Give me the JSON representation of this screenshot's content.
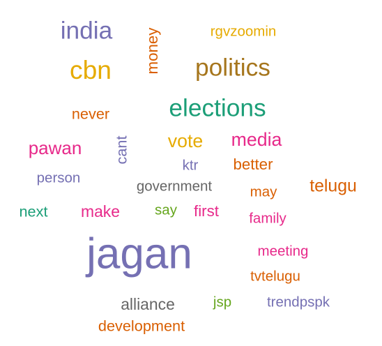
{
  "chart_data": {
    "type": "wordcloud",
    "title": "",
    "words": [
      {
        "text": "jagan",
        "weight": 100,
        "color": "#7570b3"
      },
      {
        "text": "cbn",
        "weight": 60,
        "color": "#e6ab02"
      },
      {
        "text": "india",
        "weight": 57,
        "color": "#7570b3"
      },
      {
        "text": "elections",
        "weight": 57,
        "color": "#1b9e77"
      },
      {
        "text": "politics",
        "weight": 57,
        "color": "#a6761d"
      },
      {
        "text": "money",
        "weight": 36,
        "color": "#d95f02"
      },
      {
        "text": "rgvzoomin",
        "weight": 33,
        "color": "#e6ab02"
      },
      {
        "text": "never",
        "weight": 35,
        "color": "#d95f02"
      },
      {
        "text": "pawan",
        "weight": 42,
        "color": "#e7298a"
      },
      {
        "text": "cant",
        "weight": 35,
        "color": "#7570b3"
      },
      {
        "text": "vote",
        "weight": 43,
        "color": "#e6ab02"
      },
      {
        "text": "media",
        "weight": 43,
        "color": "#e7298a"
      },
      {
        "text": "ktr",
        "weight": 33,
        "color": "#7570b3"
      },
      {
        "text": "better",
        "weight": 36,
        "color": "#d95f02"
      },
      {
        "text": "person",
        "weight": 33,
        "color": "#7570b3"
      },
      {
        "text": "government",
        "weight": 33,
        "color": "#666666"
      },
      {
        "text": "may",
        "weight": 33,
        "color": "#d95f02"
      },
      {
        "text": "telugu",
        "weight": 40,
        "color": "#d95f02"
      },
      {
        "text": "next",
        "weight": 35,
        "color": "#1b9e77"
      },
      {
        "text": "make",
        "weight": 37,
        "color": "#e7298a"
      },
      {
        "text": "say",
        "weight": 33,
        "color": "#66a61e"
      },
      {
        "text": "first",
        "weight": 36,
        "color": "#e7298a"
      },
      {
        "text": "family",
        "weight": 33,
        "color": "#e7298a"
      },
      {
        "text": "meeting",
        "weight": 33,
        "color": "#e7298a"
      },
      {
        "text": "tvtelugu",
        "weight": 33,
        "color": "#d95f02"
      },
      {
        "text": "alliance",
        "weight": 37,
        "color": "#666666"
      },
      {
        "text": "jsp",
        "weight": 33,
        "color": "#66a61e"
      },
      {
        "text": "trendpspk",
        "weight": 33,
        "color": "#7570b3"
      },
      {
        "text": "development",
        "weight": 35,
        "color": "#d95f02"
      }
    ]
  }
}
